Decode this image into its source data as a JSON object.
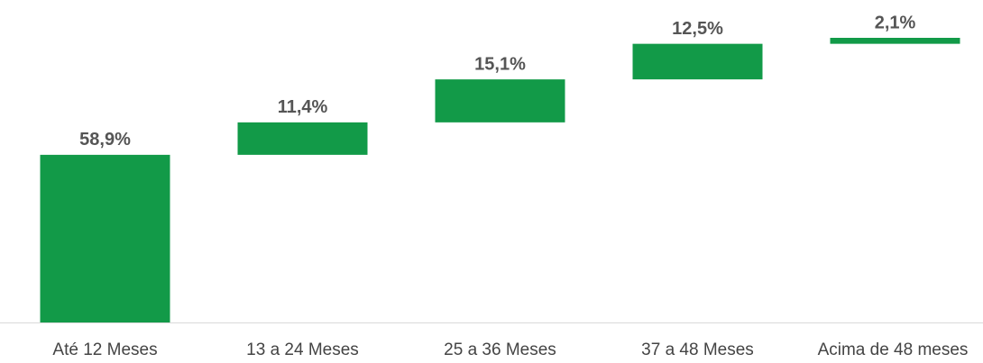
{
  "chart_data": {
    "type": "waterfall",
    "categories": [
      "Até 12 Meses",
      "13 a 24 Meses",
      "25 a 36 Meses",
      "37 a 48 Meses",
      "Acima de 48 meses"
    ],
    "values": [
      58.9,
      11.4,
      15.1,
      12.5,
      2.1
    ],
    "value_labels": [
      "58,9%",
      "11,4%",
      "15,1%",
      "12,5%",
      "2,1%"
    ],
    "color": "#129a48",
    "ylim": [
      0,
      100
    ]
  }
}
